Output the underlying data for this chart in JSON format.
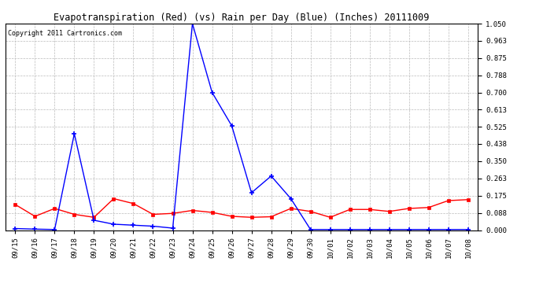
{
  "title": "Evapotranspiration (Red) (vs) Rain per Day (Blue) (Inches) 20111009",
  "copyright": "Copyright 2011 Cartronics.com",
  "x_labels": [
    "09/15",
    "09/16",
    "09/17",
    "09/18",
    "09/19",
    "09/20",
    "09/21",
    "09/22",
    "09/23",
    "09/24",
    "09/25",
    "09/26",
    "09/27",
    "09/28",
    "09/29",
    "09/30",
    "10/01",
    "10/02",
    "10/03",
    "10/04",
    "10/05",
    "10/06",
    "10/07",
    "10/08"
  ],
  "red_data": [
    0.13,
    0.07,
    0.11,
    0.08,
    0.065,
    0.16,
    0.135,
    0.08,
    0.085,
    0.1,
    0.09,
    0.07,
    0.065,
    0.068,
    0.11,
    0.095,
    0.065,
    0.105,
    0.105,
    0.095,
    0.11,
    0.115,
    0.15,
    0.155
  ],
  "blue_data": [
    0.008,
    0.005,
    0.003,
    0.49,
    0.05,
    0.03,
    0.025,
    0.02,
    0.01,
    1.05,
    0.7,
    0.53,
    0.19,
    0.275,
    0.16,
    0.003,
    0.003,
    0.003,
    0.003,
    0.003,
    0.003,
    0.003,
    0.003,
    0.003
  ],
  "ylim": [
    0.0,
    1.05
  ],
  "yticks": [
    0.0,
    0.088,
    0.175,
    0.263,
    0.35,
    0.438,
    0.525,
    0.613,
    0.7,
    0.788,
    0.875,
    0.963,
    1.05
  ],
  "bg_color": "#ffffff",
  "plot_bg_color": "#ffffff",
  "grid_color": "#bbbbbb",
  "red_color": "#ff0000",
  "blue_color": "#0000ff",
  "title_fontsize": 8.5,
  "copyright_fontsize": 6,
  "tick_fontsize": 6.5
}
